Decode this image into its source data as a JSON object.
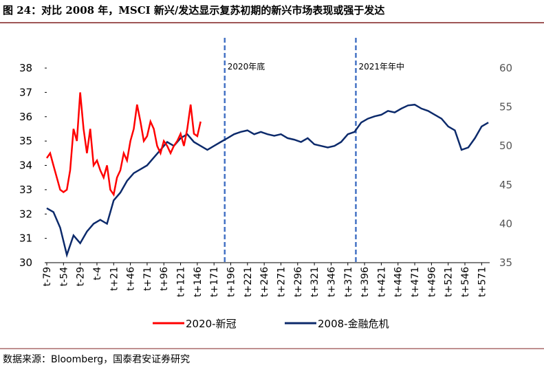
{
  "chart_data": {
    "type": "line",
    "title": "图 24：对比 2008 年，MSCI 新兴/发达显示复苏初期的新兴市场表现或强于发达",
    "source": "数据来源：Bloomberg，国泰君安证券研究",
    "annotations": [
      {
        "x": 187,
        "text": "2020年底"
      },
      {
        "x": 383,
        "text": "2021年年中"
      }
    ],
    "xlim": [
      -79,
      583
    ],
    "xticks": [
      {
        "value": -79,
        "label": "t-79"
      },
      {
        "value": -54,
        "label": "t-54"
      },
      {
        "value": -29,
        "label": "t-29"
      },
      {
        "value": -4,
        "label": "t-4"
      },
      {
        "value": 21,
        "label": "t+21"
      },
      {
        "value": 46,
        "label": "t+46"
      },
      {
        "value": 71,
        "label": "t+71"
      },
      {
        "value": 96,
        "label": "t+96"
      },
      {
        "value": 121,
        "label": "t+121"
      },
      {
        "value": 146,
        "label": "t+146"
      },
      {
        "value": 171,
        "label": "t+171"
      },
      {
        "value": 196,
        "label": "t+196"
      },
      {
        "value": 221,
        "label": "t+221"
      },
      {
        "value": 246,
        "label": "t+246"
      },
      {
        "value": 271,
        "label": "t+271"
      },
      {
        "value": 296,
        "label": "t+296"
      },
      {
        "value": 321,
        "label": "t+321"
      },
      {
        "value": 346,
        "label": "t+346"
      },
      {
        "value": 371,
        "label": "t+371"
      },
      {
        "value": 396,
        "label": "t+396"
      },
      {
        "value": 421,
        "label": "t+421"
      },
      {
        "value": 446,
        "label": "t+446"
      },
      {
        "value": 471,
        "label": "t+471"
      },
      {
        "value": 496,
        "label": "t+496"
      },
      {
        "value": 521,
        "label": "t+521"
      },
      {
        "value": 546,
        "label": "t+546"
      },
      {
        "value": 571,
        "label": "t+571"
      }
    ],
    "ylim": [
      30,
      38
    ],
    "yticks": [
      30,
      31,
      32,
      33,
      34,
      35,
      36,
      37,
      38
    ],
    "y2lim": [
      35,
      60
    ],
    "y2ticks": [
      35,
      40,
      45,
      50,
      55,
      60
    ],
    "series": [
      {
        "name": "2020-新冠",
        "color": "#ff0000",
        "axis": "y",
        "x": [
          -79,
          -74,
          -69,
          -64,
          -59,
          -54,
          -49,
          -44,
          -39,
          -34,
          -29,
          -24,
          -19,
          -14,
          -9,
          -4,
          1,
          6,
          11,
          16,
          21,
          26,
          31,
          36,
          41,
          46,
          51,
          56,
          61,
          66,
          71,
          76,
          81,
          86,
          91,
          96,
          101,
          106,
          111,
          116,
          121,
          126,
          131,
          136,
          141,
          146,
          151
        ],
        "values": [
          34.3,
          34.5,
          34,
          33.5,
          33,
          32.9,
          33,
          33.8,
          35.5,
          35,
          37,
          35.5,
          34.5,
          35.5,
          34,
          34.2,
          33.8,
          33.5,
          34,
          33,
          32.8,
          33.5,
          33.8,
          34.5,
          34.2,
          35,
          35.5,
          36.5,
          35.8,
          35,
          35.2,
          35.8,
          35.5,
          34.8,
          34.5,
          35,
          34.8,
          34.5,
          34.8,
          35,
          35.3,
          34.8,
          35.5,
          36.5,
          35.3,
          35.2,
          35.8
        ]
      },
      {
        "name": "2008-金融危机",
        "color": "#0c2a6b",
        "axis": "y2",
        "x": [
          -79,
          -69,
          -59,
          -49,
          -39,
          -29,
          -19,
          -9,
          1,
          11,
          21,
          31,
          41,
          51,
          61,
          71,
          81,
          91,
          101,
          111,
          121,
          131,
          141,
          151,
          161,
          171,
          181,
          191,
          201,
          211,
          221,
          231,
          241,
          251,
          261,
          271,
          281,
          291,
          301,
          311,
          321,
          331,
          341,
          351,
          361,
          371,
          381,
          391,
          401,
          411,
          421,
          431,
          441,
          451,
          461,
          471,
          481,
          491,
          501,
          511,
          521,
          531,
          541,
          551,
          561,
          571,
          581
        ],
        "values": [
          42,
          41.5,
          39.5,
          36,
          38.5,
          37.5,
          39,
          40,
          40.5,
          40,
          43,
          44,
          45.5,
          46.5,
          47,
          47.5,
          48.5,
          49.5,
          50.5,
          50,
          51,
          51.5,
          50.5,
          50,
          49.5,
          50,
          50.5,
          51,
          51.5,
          51.8,
          52,
          51.5,
          51.8,
          51.5,
          51.3,
          51.5,
          51,
          50.8,
          50.5,
          51,
          50.2,
          50,
          49.8,
          50,
          50.5,
          51.5,
          51.8,
          53,
          53.5,
          53.8,
          54,
          54.5,
          54.3,
          54.8,
          55.2,
          55.3,
          54.8,
          54.5,
          54,
          53.5,
          52.5,
          52,
          49.5,
          49.8,
          51,
          52.5,
          53
        ]
      }
    ]
  }
}
